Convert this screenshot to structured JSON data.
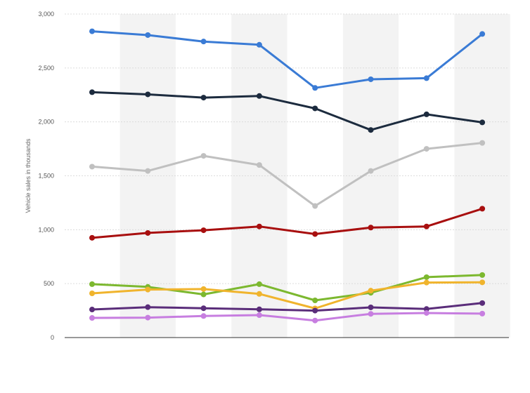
{
  "chart_data": {
    "type": "line",
    "title": "",
    "xlabel": "",
    "ylabel": "Vehicle sales in thousands",
    "ylim": [
      0,
      3000
    ],
    "yticks": [
      0,
      500,
      1000,
      1500,
      2000,
      2500,
      3000
    ],
    "ytick_labels": [
      "0",
      "500",
      "1,000",
      "1,500",
      "2,000",
      "2,500",
      "3,000"
    ],
    "x": [
      1,
      2,
      3,
      4,
      5,
      6,
      7,
      8
    ],
    "grid": true,
    "legend": false,
    "series": [
      {
        "name": "series-blue",
        "color": "#3a7bd5",
        "values": [
          2840,
          2805,
          2745,
          2715,
          2315,
          2395,
          2405,
          2815
        ]
      },
      {
        "name": "series-navy",
        "color": "#1c2b3e",
        "values": [
          2275,
          2255,
          2225,
          2240,
          2125,
          1925,
          2070,
          1995
        ]
      },
      {
        "name": "series-gray",
        "color": "#c0c0c0",
        "values": [
          1585,
          1545,
          1685,
          1600,
          1220,
          1545,
          1750,
          1805
        ]
      },
      {
        "name": "series-red",
        "color": "#a80f0f",
        "values": [
          925,
          970,
          995,
          1030,
          960,
          1020,
          1030,
          1195
        ]
      },
      {
        "name": "series-green",
        "color": "#7cb82f",
        "values": [
          495,
          470,
          400,
          495,
          345,
          415,
          560,
          580
        ]
      },
      {
        "name": "series-yellow",
        "color": "#f0b42d",
        "values": [
          410,
          445,
          450,
          405,
          270,
          435,
          510,
          512
        ]
      },
      {
        "name": "series-purple",
        "color": "#5a2d7a",
        "values": [
          260,
          282,
          272,
          262,
          250,
          280,
          265,
          320
        ]
      },
      {
        "name": "series-lilac",
        "color": "#c77ee0",
        "values": [
          182,
          185,
          200,
          208,
          158,
          220,
          228,
          222
        ]
      }
    ]
  }
}
